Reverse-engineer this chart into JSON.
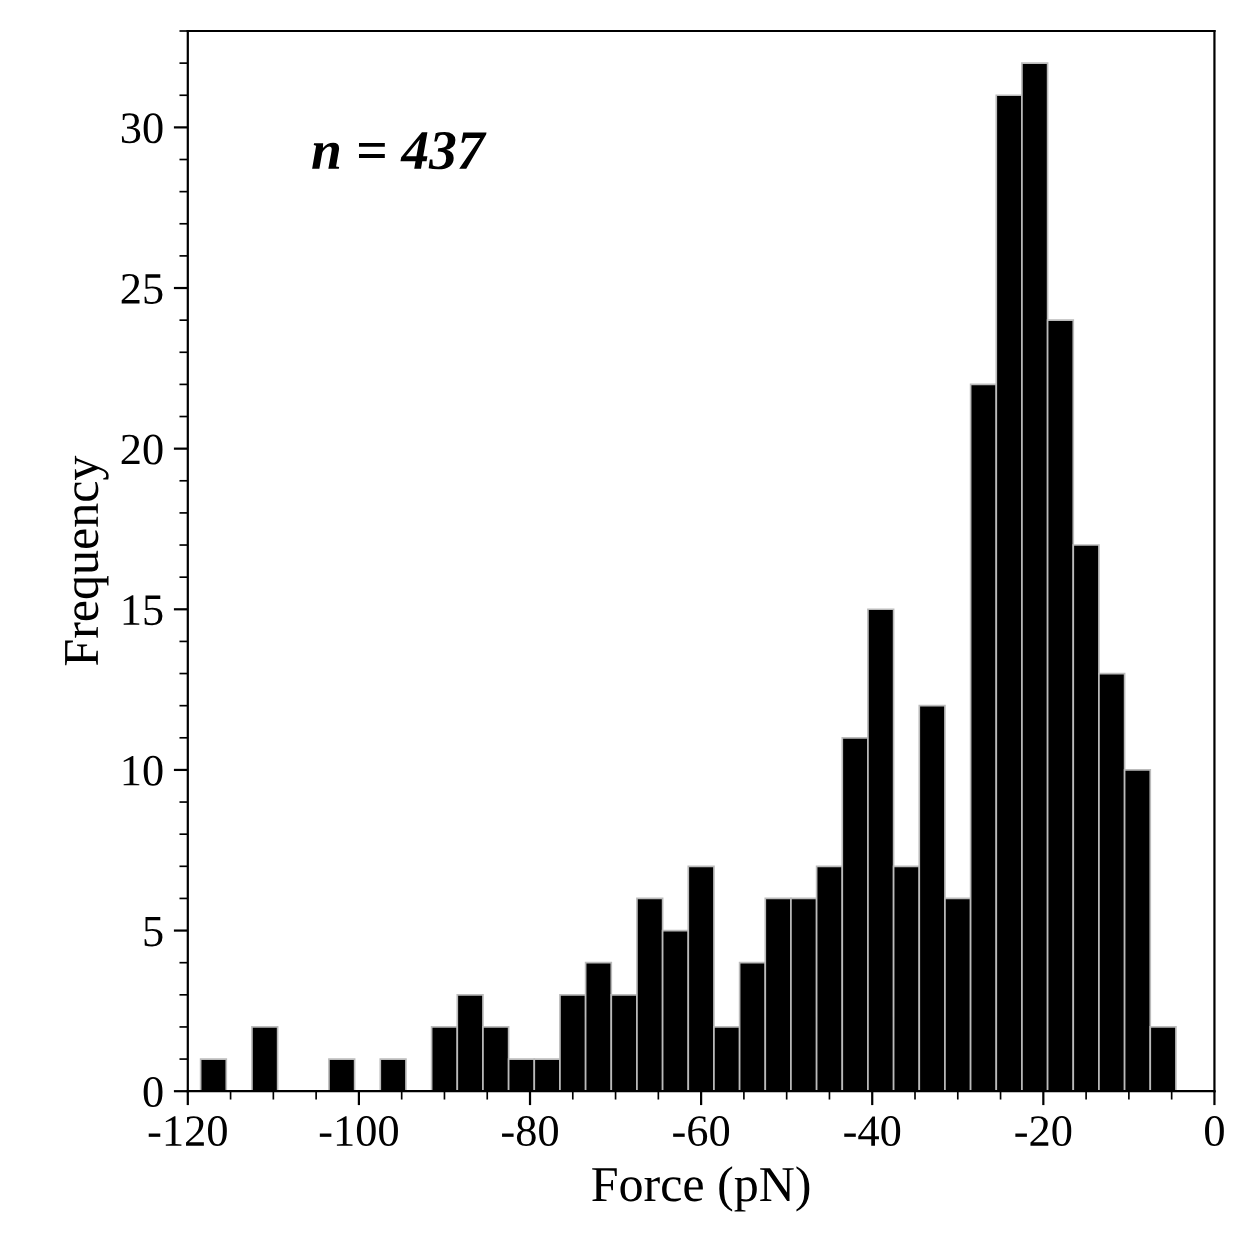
{
  "chart_data": {
    "type": "histogram",
    "xlabel": "Force (pN)",
    "ylabel": "Frequency",
    "annotations": [
      "n = 437"
    ],
    "bins": [
      -118.5,
      -115.5,
      -112.5,
      -109.5,
      -106.5,
      -103.5,
      -100.5,
      -97.5,
      -94.5,
      -91.5,
      -88.5,
      -85.5,
      -82.5,
      -79.5,
      -76.5,
      -73.5,
      -70.5,
      -67.5,
      -64.5,
      -61.5,
      -58.5,
      -55.5,
      -52.5,
      -49.5,
      -46.5,
      -43.5,
      -40.5,
      -37.5,
      -34.5,
      -31.5,
      -28.5,
      -25.5,
      -22.5,
      -19.5,
      -16.5,
      -13.5,
      -10.5,
      -7.5,
      -4.5
    ],
    "values": [
      1,
      0,
      2,
      0,
      0,
      1,
      0,
      1,
      0,
      2,
      3,
      2,
      1,
      1,
      3,
      4,
      3,
      6,
      5,
      7,
      2,
      4,
      6,
      6,
      7,
      11,
      15,
      7,
      12,
      6,
      22,
      31,
      32,
      24,
      17,
      13,
      10,
      2
    ],
    "color": "#000000",
    "xlim": [
      -120,
      0
    ],
    "xticks": [
      -120,
      -100,
      -80,
      -60,
      -40,
      -20,
      0
    ],
    "ylim": [
      0,
      33
    ],
    "yticks": [
      0,
      5,
      10,
      15,
      20,
      25,
      30
    ],
    "grid": false,
    "legend": false
  }
}
